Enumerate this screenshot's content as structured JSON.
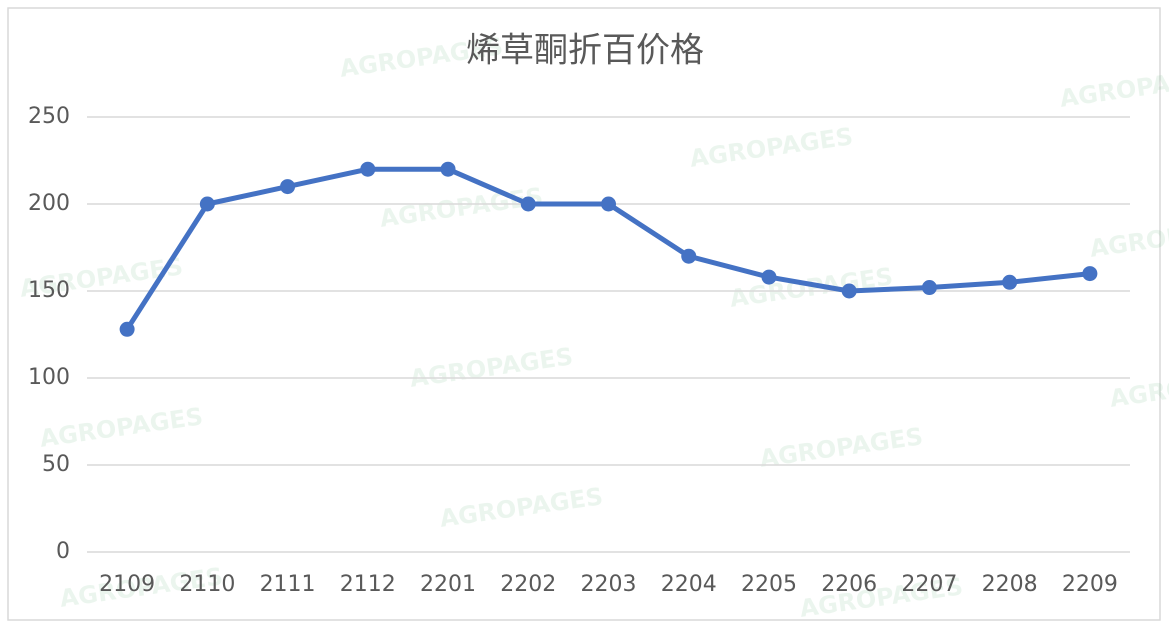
{
  "chart_data": {
    "type": "line",
    "title": "烯草酮折百价格",
    "watermark": "AGROPAGES",
    "categories": [
      "2109",
      "2110",
      "2111",
      "2112",
      "2201",
      "2202",
      "2203",
      "2204",
      "2205",
      "2206",
      "2207",
      "2208",
      "2209"
    ],
    "values": [
      128,
      200,
      210,
      220,
      220,
      200,
      200,
      170,
      158,
      150,
      152,
      155,
      160
    ],
    "color": "#4472c4",
    "ylim": [
      0,
      250
    ],
    "yticks": [
      0,
      50,
      100,
      150,
      200,
      250
    ],
    "grid": true
  }
}
